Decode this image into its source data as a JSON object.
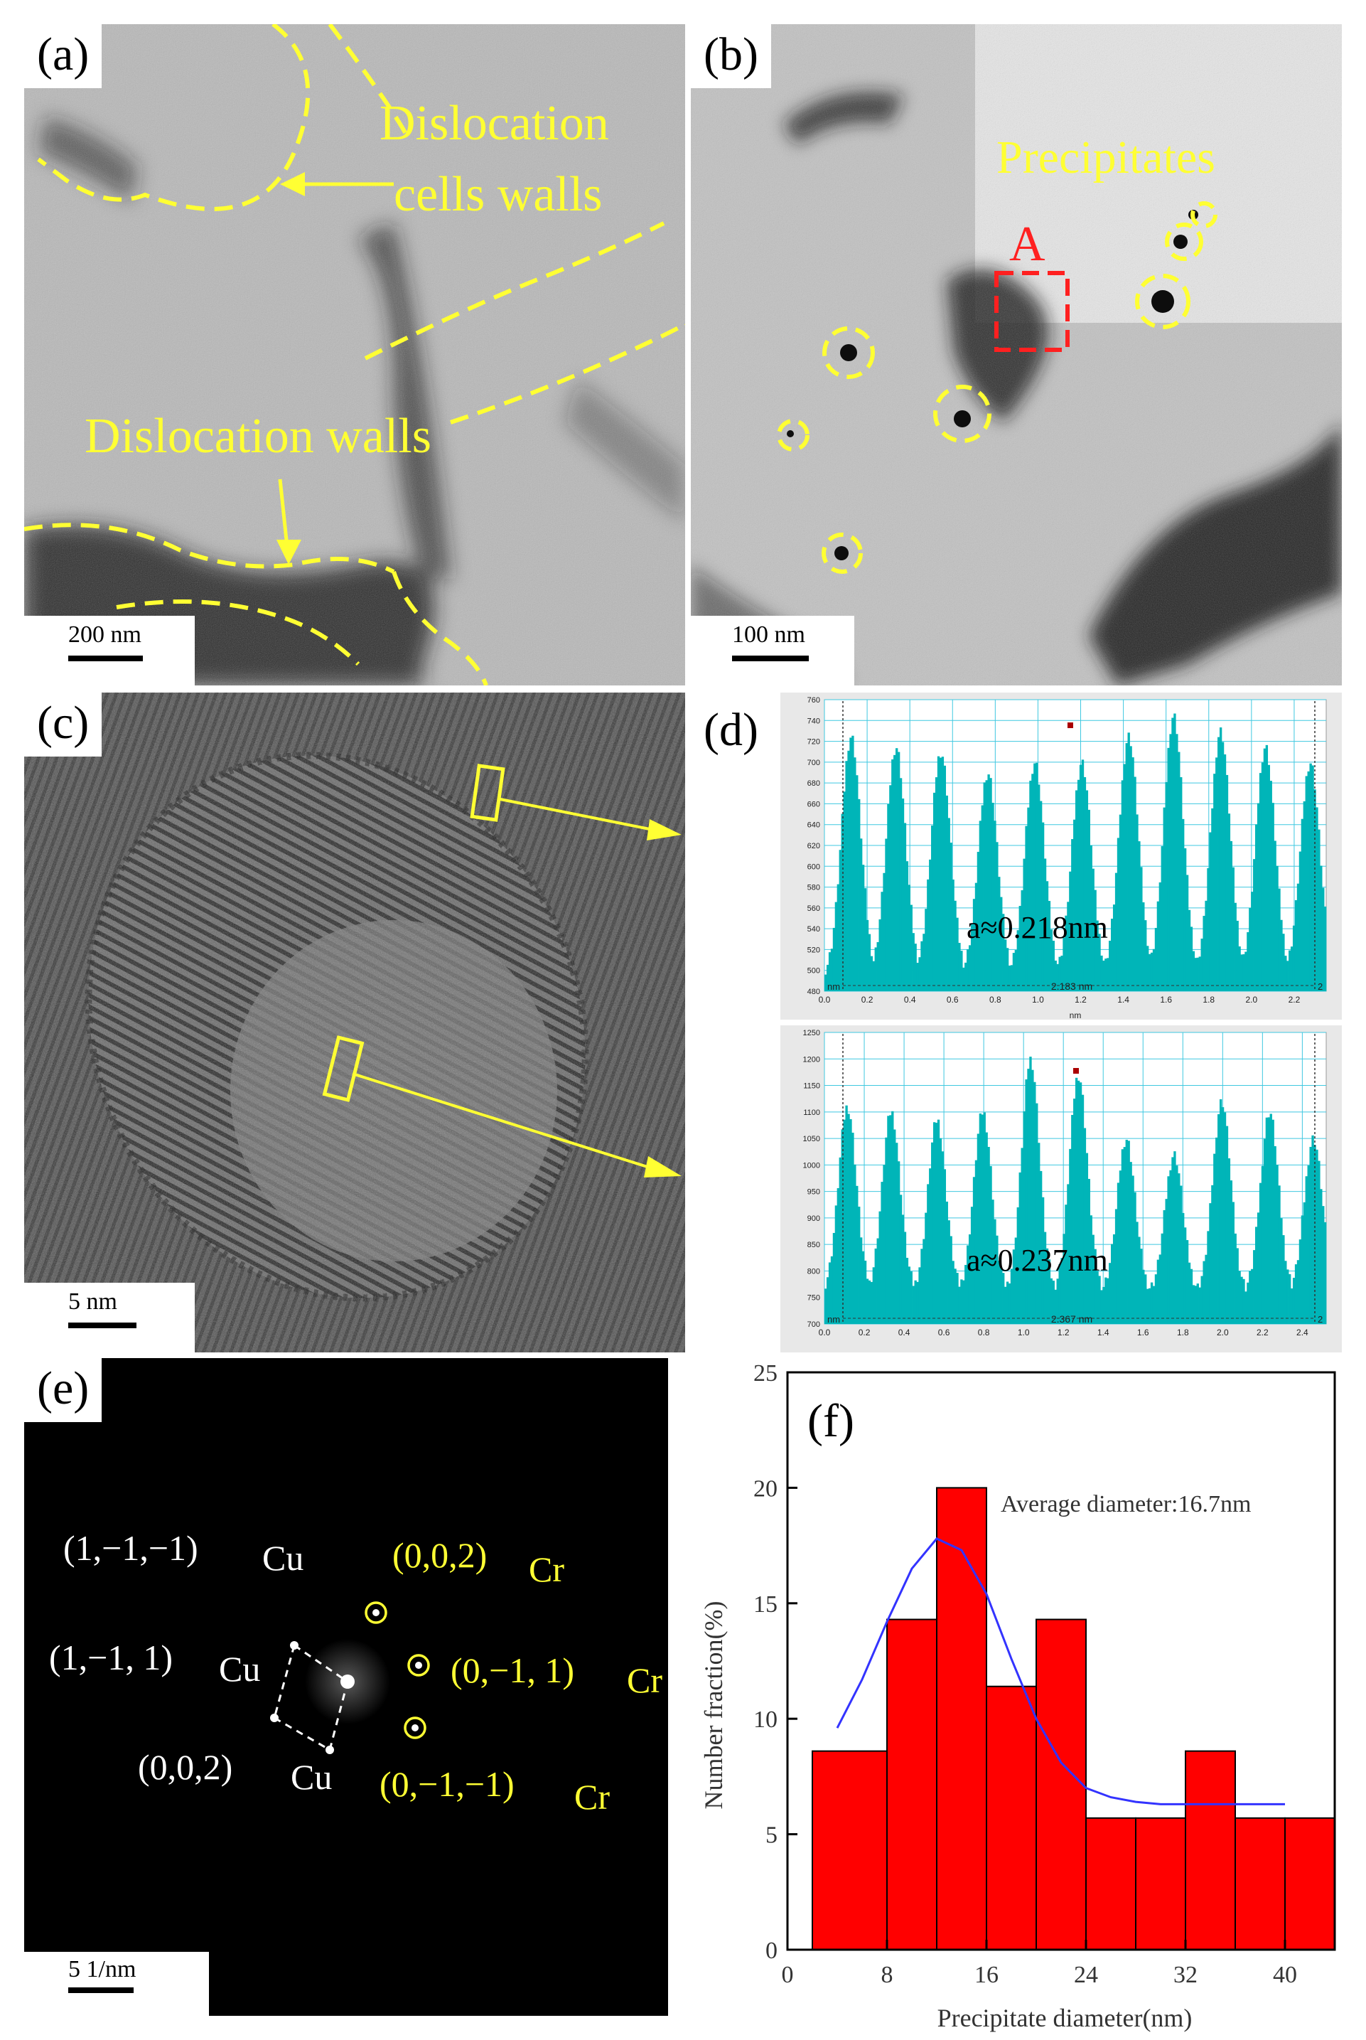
{
  "panels": {
    "a": {
      "label": "(a)",
      "scale": "200 nm",
      "annotations": {
        "cells_walls_line1": "Dislocation",
        "cells_walls_line2": "cells walls",
        "walls": "Dislocation walls"
      }
    },
    "b": {
      "label": "(b)",
      "scale": "100 nm",
      "annotations": {
        "precipitates": "Precipitates",
        "region": "A"
      }
    },
    "c": {
      "label": "(c)",
      "scale": "5 nm"
    },
    "d": {
      "label": "(d)"
    },
    "e": {
      "label": "(e)",
      "scale": "5 1/nm",
      "spots": {
        "cu1": "(1,−1,−1)",
        "cu2": "(1,−1, 1)",
        "cu3": "(0,0,2)",
        "cr1": "(0,0,2)",
        "cr2": "(0,−1, 1)",
        "cr3": "(0,−1,−1)",
        "cu": "Cu",
        "cr": "Cr"
      }
    },
    "f": {
      "label": "(f)"
    }
  },
  "colors": {
    "annotation": "#ffff33",
    "profile": "#00b5b8",
    "hist_bar": "#ff0000",
    "fit_line": "#3333ff"
  },
  "chart_data": [
    {
      "type": "bar",
      "panel": "d-top",
      "x": [
        0.0,
        0.1,
        0.2,
        0.3,
        0.4,
        0.5,
        0.6,
        0.7,
        0.8,
        0.9,
        1.0,
        1.1,
        1.2,
        1.3,
        1.4,
        1.5,
        1.6,
        1.7,
        1.8,
        1.9,
        2.0,
        2.1,
        2.2
      ],
      "peaks_x": [
        0.12,
        0.33,
        0.54,
        0.76,
        0.98,
        1.2,
        1.42,
        1.63,
        1.85,
        2.06,
        2.27
      ],
      "peaks_y": [
        725,
        715,
        710,
        690,
        700,
        700,
        725,
        745,
        730,
        715,
        700
      ],
      "minimum_y": 495,
      "xlim": [
        0,
        2.35
      ],
      "ylim": [
        480,
        760
      ],
      "xticks": [
        "0.0",
        "0.2",
        "0.4",
        "0.6",
        "0.8",
        "1.0",
        "1.2",
        "1.4",
        "1.6",
        "1.8",
        "2.0",
        "2.2"
      ],
      "yticks": [
        "480",
        "500",
        "520",
        "540",
        "560",
        "580",
        "600",
        "620",
        "640",
        "660",
        "680",
        "700",
        "720",
        "740",
        "760"
      ],
      "xlabel": "nm",
      "measure": "2.183 nm",
      "unit_left": "nm",
      "unit_right": "2",
      "annotation": "a≈0.218nm"
    },
    {
      "type": "bar",
      "panel": "d-bottom",
      "peaks_x": [
        0.11,
        0.33,
        0.56,
        0.79,
        1.03,
        1.27,
        1.51,
        1.75,
        1.99,
        2.23,
        2.45
      ],
      "peaks_y": [
        1110,
        1100,
        1085,
        1100,
        1200,
        1170,
        1050,
        1020,
        1120,
        1100,
        1050
      ],
      "minimum_y": 760,
      "xlim": [
        0,
        2.52
      ],
      "ylim": [
        700,
        1250
      ],
      "xticks": [
        "0.0",
        "0.2",
        "0.4",
        "0.6",
        "0.8",
        "1.0",
        "1.2",
        "1.4",
        "1.6",
        "1.8",
        "2.0",
        "2.2",
        "2.4"
      ],
      "yticks": [
        "700",
        "750",
        "800",
        "850",
        "900",
        "950",
        "1000",
        "1050",
        "1100",
        "1150",
        "1200",
        "1250"
      ],
      "xlabel": "nm",
      "measure": "2.367 nm",
      "unit_left": "nm",
      "unit_right": "2",
      "annotation": "a≈0.237nm"
    },
    {
      "type": "bar",
      "panel": "f",
      "bins": [
        [
          2,
          8
        ],
        [
          8,
          12
        ],
        [
          12,
          16
        ],
        [
          16,
          20
        ],
        [
          20,
          24
        ],
        [
          24,
          28
        ],
        [
          28,
          32
        ],
        [
          32,
          36
        ],
        [
          36,
          40
        ],
        [
          40,
          44
        ]
      ],
      "values": [
        8.6,
        14.3,
        20.0,
        11.4,
        14.3,
        5.7,
        5.7,
        8.6,
        5.7,
        5.7
      ],
      "fit": {
        "x": [
          4,
          6,
          8,
          10,
          12,
          14,
          16,
          18,
          20,
          22,
          24,
          26,
          28,
          30,
          32,
          34,
          36,
          38,
          40
        ],
        "y": [
          9.6,
          11.7,
          14.2,
          16.5,
          17.8,
          17.3,
          15.4,
          12.6,
          10.0,
          8.1,
          7.0,
          6.6,
          6.4,
          6.3,
          6.3,
          6.3,
          6.3,
          6.3,
          6.3
        ]
      },
      "xlim": [
        0,
        44
      ],
      "ylim": [
        0,
        25
      ],
      "xticks": [
        "0",
        "8",
        "16",
        "24",
        "32",
        "40"
      ],
      "yticks": [
        "0",
        "5",
        "10",
        "15",
        "20",
        "25"
      ],
      "xlabel": "Precipitate diameter(nm)",
      "ylabel": "Number fraction(%)",
      "annotation": "Average diameter:16.7nm"
    }
  ]
}
